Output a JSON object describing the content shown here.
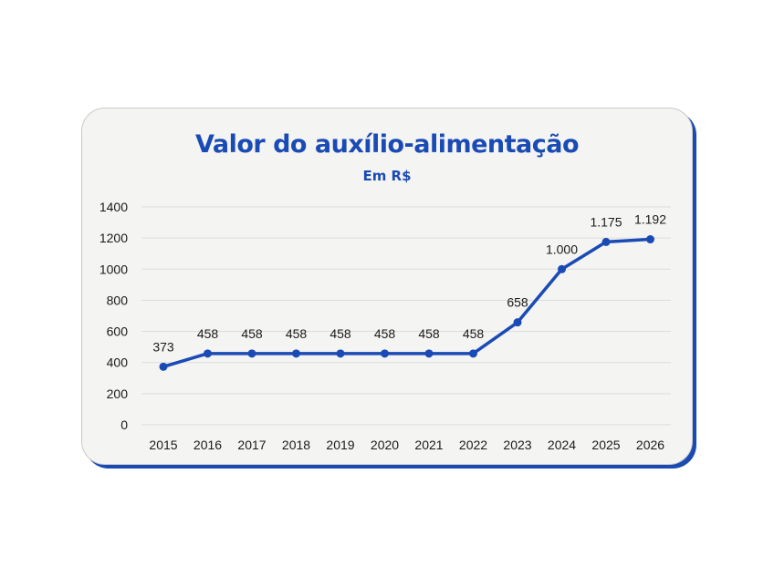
{
  "chart_data": {
    "type": "line",
    "title": "Valor do auxílio-alimentação",
    "subtitle": "Em R$",
    "categories": [
      "2015",
      "2016",
      "2017",
      "2018",
      "2019",
      "2020",
      "2021",
      "2022",
      "2023",
      "2024",
      "2025",
      "2026"
    ],
    "series": [
      {
        "values": [
          373,
          458,
          458,
          458,
          458,
          458,
          458,
          458,
          658,
          1000,
          1175,
          1192
        ],
        "labels": [
          "373",
          "458",
          "458",
          "458",
          "458",
          "458",
          "458",
          "458",
          "658",
          "1.000",
          "1.175",
          "1.192"
        ]
      }
    ],
    "y_ticks": [
      "0",
      "200",
      "400",
      "600",
      "800",
      "1000",
      "1200",
      "1400"
    ],
    "ylim": [
      0,
      1400
    ],
    "grid": true,
    "legend": "none",
    "colors": {
      "line": "#1a4bb5",
      "title": "#1a4bb5",
      "grid": "#dcdcdc",
      "card_shadow": "#1a4bb5"
    }
  }
}
